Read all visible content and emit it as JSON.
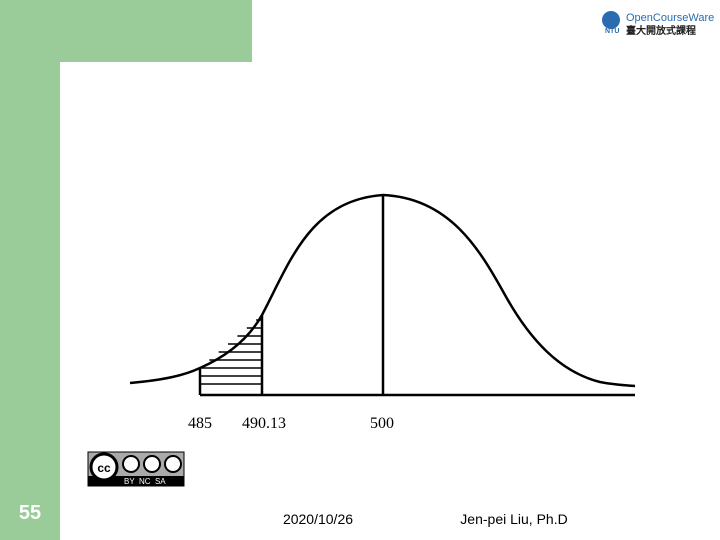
{
  "logo": {
    "english": "OpenCourseWare",
    "chinese": "臺大開放式課程",
    "abbr": "NTU"
  },
  "diagram": {
    "labels": [
      "485",
      "490.13",
      "500"
    ]
  },
  "license": {
    "badge": "cc",
    "terms": "BY  NC  SA"
  },
  "footer": {
    "page": "55",
    "date": "2020/10/26",
    "author": "Jen-pei Liu, Ph.D"
  }
}
